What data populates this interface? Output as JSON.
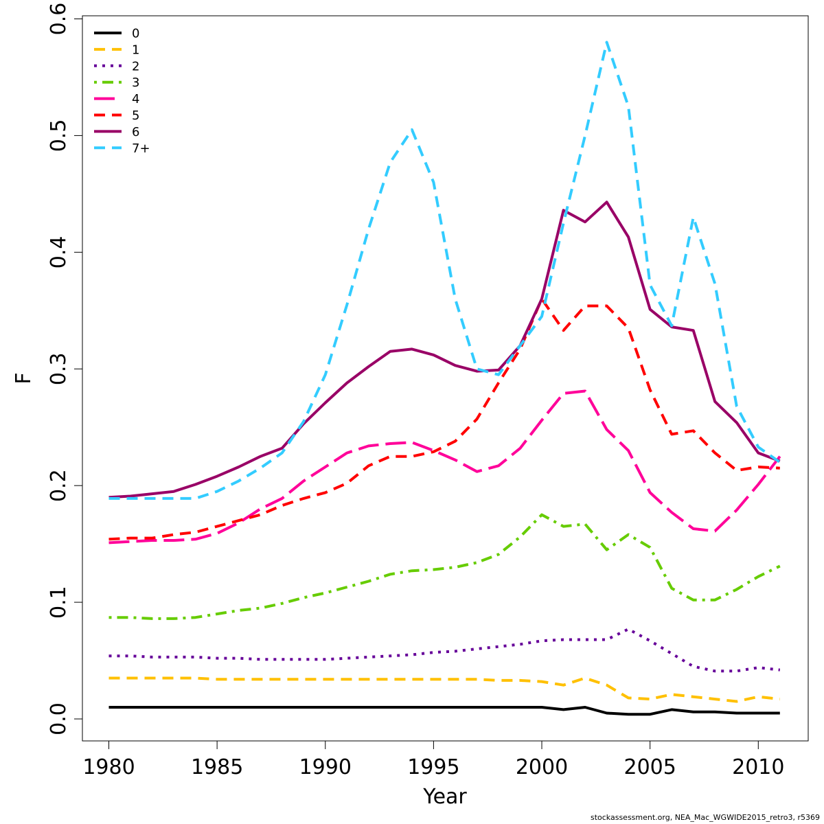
{
  "chart_data": {
    "type": "line",
    "title": "",
    "xlabel": "Year",
    "ylabel": "F",
    "xlim": [
      1979,
      2012
    ],
    "ylim": [
      -0.02,
      0.6
    ],
    "xticks": [
      1980,
      1985,
      1990,
      1995,
      2000,
      2005,
      2010
    ],
    "yticks": [
      0.0,
      0.1,
      0.2,
      0.3,
      0.4,
      0.5,
      0.6
    ],
    "xtick_labels": [
      "1980",
      "1985",
      "1990",
      "1995",
      "2000",
      "2005",
      "2010"
    ],
    "ytick_labels": [
      "0.0",
      "0.1",
      "0.2",
      "0.3",
      "0.4",
      "0.5",
      "0.6"
    ],
    "grid": false,
    "legend_position": "top-left",
    "x": [
      1980,
      1981,
      1982,
      1983,
      1984,
      1985,
      1986,
      1987,
      1988,
      1989,
      1990,
      1991,
      1992,
      1993,
      1994,
      1995,
      1996,
      1997,
      1998,
      1999,
      2000,
      2001,
      2002,
      2003,
      2004,
      2005,
      2006,
      2007,
      2008,
      2009,
      2010,
      2011
    ],
    "series": [
      {
        "name": "0",
        "color": "#000000",
        "dash": "solid",
        "values": [
          0.01,
          0.01,
          0.01,
          0.01,
          0.01,
          0.01,
          0.01,
          0.01,
          0.01,
          0.01,
          0.01,
          0.01,
          0.01,
          0.01,
          0.01,
          0.01,
          0.01,
          0.01,
          0.01,
          0.01,
          0.01,
          0.008,
          0.01,
          0.005,
          0.004,
          0.004,
          0.008,
          0.006,
          0.006,
          0.005,
          0.005,
          0.005
        ]
      },
      {
        "name": "1",
        "color": "#FFC000",
        "dash": "dashed",
        "values": [
          0.035,
          0.035,
          0.035,
          0.035,
          0.035,
          0.034,
          0.034,
          0.034,
          0.034,
          0.034,
          0.034,
          0.034,
          0.034,
          0.034,
          0.034,
          0.034,
          0.034,
          0.034,
          0.033,
          0.033,
          0.032,
          0.029,
          0.035,
          0.029,
          0.018,
          0.017,
          0.021,
          0.019,
          0.017,
          0.015,
          0.019,
          0.017
        ]
      },
      {
        "name": "2",
        "color": "#660099",
        "dash": "dotted",
        "values": [
          0.054,
          0.054,
          0.053,
          0.053,
          0.053,
          0.052,
          0.052,
          0.051,
          0.051,
          0.051,
          0.051,
          0.052,
          0.053,
          0.054,
          0.055,
          0.057,
          0.058,
          0.06,
          0.062,
          0.064,
          0.067,
          0.068,
          0.068,
          0.068,
          0.077,
          0.067,
          0.056,
          0.045,
          0.041,
          0.041,
          0.044,
          0.042
        ]
      },
      {
        "name": "3",
        "color": "#66CC00",
        "dash": "dotdash",
        "values": [
          0.087,
          0.087,
          0.086,
          0.086,
          0.087,
          0.09,
          0.093,
          0.095,
          0.099,
          0.104,
          0.108,
          0.113,
          0.118,
          0.124,
          0.127,
          0.128,
          0.13,
          0.134,
          0.141,
          0.156,
          0.175,
          0.165,
          0.167,
          0.145,
          0.158,
          0.147,
          0.112,
          0.102,
          0.102,
          0.111,
          0.122,
          0.131
        ]
      },
      {
        "name": "4",
        "color": "#FF0099",
        "dash": "longdash",
        "values": [
          0.151,
          0.152,
          0.153,
          0.153,
          0.154,
          0.159,
          0.168,
          0.18,
          0.189,
          0.204,
          0.216,
          0.228,
          0.234,
          0.236,
          0.237,
          0.23,
          0.222,
          0.212,
          0.217,
          0.232,
          0.256,
          0.279,
          0.281,
          0.248,
          0.23,
          0.194,
          0.177,
          0.163,
          0.161,
          0.179,
          0.201,
          0.225
        ]
      },
      {
        "name": "5",
        "color": "#FF0000",
        "dash": "dashed",
        "values": [
          0.154,
          0.155,
          0.155,
          0.158,
          0.16,
          0.165,
          0.17,
          0.175,
          0.183,
          0.189,
          0.194,
          0.202,
          0.217,
          0.225,
          0.225,
          0.229,
          0.238,
          0.257,
          0.288,
          0.317,
          0.36,
          0.333,
          0.354,
          0.354,
          0.335,
          0.282,
          0.244,
          0.247,
          0.228,
          0.213,
          0.216,
          0.215
        ]
      },
      {
        "name": "6",
        "color": "#990066",
        "dash": "solid",
        "values": [
          0.19,
          0.191,
          0.193,
          0.195,
          0.201,
          0.208,
          0.216,
          0.225,
          0.232,
          0.253,
          0.271,
          0.288,
          0.302,
          0.315,
          0.317,
          0.312,
          0.303,
          0.298,
          0.299,
          0.32,
          0.36,
          0.436,
          0.426,
          0.443,
          0.413,
          0.351,
          0.336,
          0.333,
          0.272,
          0.254,
          0.228,
          0.221
        ]
      },
      {
        "name": "7+",
        "color": "#33CCFF",
        "dash": "dashed",
        "values": [
          0.189,
          0.189,
          0.189,
          0.189,
          0.189,
          0.195,
          0.204,
          0.215,
          0.228,
          0.255,
          0.295,
          0.355,
          0.42,
          0.477,
          0.505,
          0.46,
          0.36,
          0.3,
          0.295,
          0.32,
          0.345,
          0.425,
          0.5,
          0.58,
          0.525,
          0.372,
          0.337,
          0.43,
          0.373,
          0.268,
          0.233,
          0.22
        ]
      }
    ]
  },
  "credit": "stockassessment.org, NEA_Mac_WGWIDE2015_retro3, r5369"
}
